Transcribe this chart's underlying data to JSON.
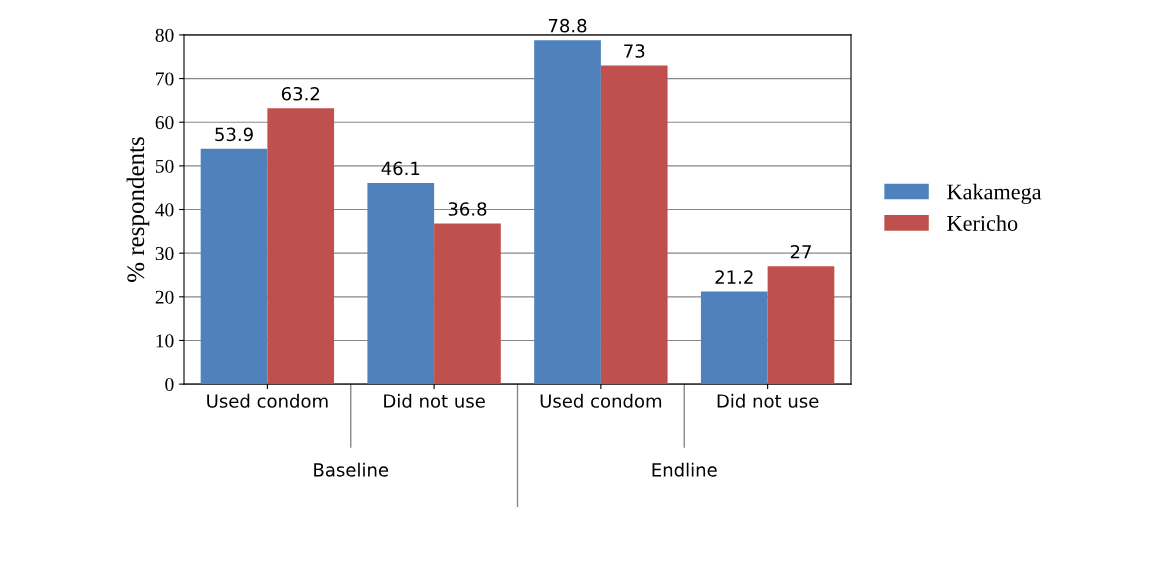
{
  "chart_data": {
    "type": "bar",
    "ylabel": "% respondents",
    "categories": [
      "Used condom",
      "Did not use",
      "Used condom",
      "Did not use"
    ],
    "series": [
      {
        "name": "Kakamega",
        "color": "#4f81bd",
        "values": [
          53.9,
          46.1,
          78.8,
          21.2
        ]
      },
      {
        "name": "Kericho",
        "color": "#c0504d",
        "values": [
          63.2,
          36.8,
          73,
          27
        ]
      }
    ],
    "annotations": [
      "Baseline",
      "Endline"
    ],
    "ylim": [
      0,
      80
    ],
    "yticks": [
      0,
      10,
      20,
      30,
      40,
      50,
      60,
      70,
      80
    ],
    "grid": "y",
    "legend": "right",
    "data_labels": true
  }
}
